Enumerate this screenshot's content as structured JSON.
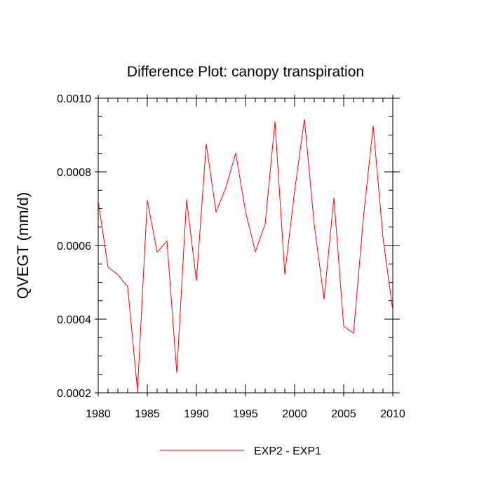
{
  "chart_data": {
    "type": "line",
    "title": "Difference Plot: canopy transpiration",
    "xlabel": "",
    "ylabel": "QVEGT  (mm/d)",
    "xlim": [
      1980,
      2010
    ],
    "ylim": [
      0.0002,
      0.001
    ],
    "xticks": [
      "1980",
      "1985",
      "1990",
      "1995",
      "2000",
      "2005",
      "2010"
    ],
    "yticks": [
      "0.0002",
      "0.0004",
      "0.0006",
      "0.0008",
      "0.0010"
    ],
    "grid": false,
    "legend_position": "bottom-center",
    "series": [
      {
        "name": "EXP2 - EXP1",
        "color": "#ff0000",
        "x": [
          1980,
          1981,
          1982,
          1983,
          1984,
          1985,
          1986,
          1987,
          1988,
          1989,
          1990,
          1991,
          1992,
          1993,
          1994,
          1995,
          1996,
          1997,
          1998,
          1999,
          2000,
          2001,
          2002,
          2003,
          2004,
          2005,
          2006,
          2007,
          2008,
          2009,
          2010
        ],
        "values": [
          0.00072,
          0.000541,
          0.000521,
          0.000488,
          0.000206,
          0.000723,
          0.000582,
          0.000612,
          0.000254,
          0.000725,
          0.000504,
          0.000876,
          0.000691,
          0.000757,
          0.000851,
          0.000693,
          0.000583,
          0.000658,
          0.000937,
          0.000522,
          0.000748,
          0.000943,
          0.000656,
          0.000454,
          0.00073,
          0.000381,
          0.000362,
          0.000674,
          0.000925,
          0.000621,
          0.000424
        ]
      }
    ]
  }
}
